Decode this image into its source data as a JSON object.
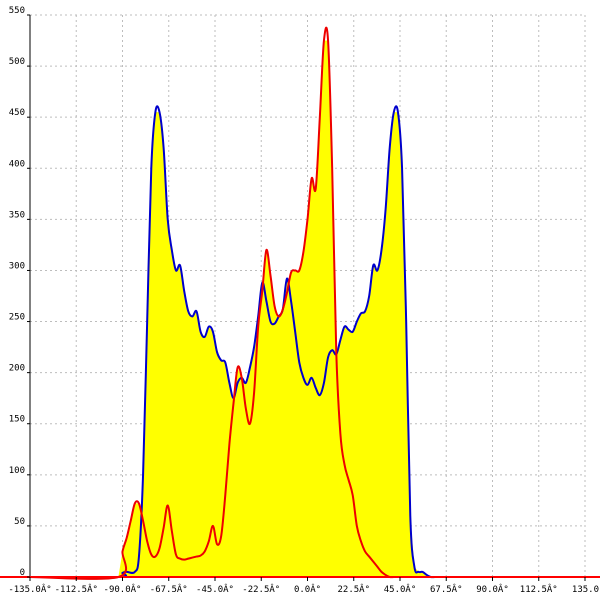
{
  "chart_data": {
    "type": "area",
    "title": "",
    "xlabel": "",
    "ylabel": "",
    "xlim": [
      -135,
      135
    ],
    "ylim": [
      0,
      550
    ],
    "grid": true,
    "x_tick_labels": [
      "-135.0Â°",
      "-112.5Â°",
      "-90.0Â°",
      "-67.5Â°",
      "-45.0Â°",
      "-22.5Â°",
      "0.0Â°",
      "22.5Â°",
      "45.0Â°",
      "67.5Â°",
      "90.0Â°",
      "112.5Â°",
      "135.0"
    ],
    "x_ticks": [
      -135,
      -112.5,
      -90,
      -67.5,
      -45,
      -22.5,
      0,
      22.5,
      45,
      67.5,
      90,
      112.5,
      135
    ],
    "y_tick_labels": [
      "0",
      "50",
      "100",
      "150",
      "200",
      "250",
      "300",
      "350",
      "400",
      "450",
      "500",
      "550"
    ],
    "y_ticks": [
      0,
      50,
      100,
      150,
      200,
      250,
      300,
      350,
      400,
      450,
      500,
      550
    ],
    "colors": {
      "fill": "#ffff00",
      "series_a": "#0000cc",
      "series_b": "#ee0000",
      "axis": "#000000",
      "grid": "#bdbdbd",
      "baseline": "#ff0000"
    },
    "series": [
      {
        "color": "#0000cc",
        "x": [
          -135,
          -92,
          -90,
          -88,
          -84,
          -82,
          -80,
          -78,
          -76,
          -74,
          -72,
          -70,
          -68,
          -66,
          -64,
          -62,
          -60,
          -58,
          -56,
          -54,
          -52,
          -50,
          -48,
          -46,
          -44,
          -42,
          -40,
          -38,
          -36,
          -34,
          -32,
          -30,
          -28,
          -26,
          -24,
          -22,
          -20,
          -18,
          -16,
          -14,
          -12,
          -10,
          -8,
          -6,
          -4,
          -2,
          0,
          2,
          4,
          6,
          8,
          10,
          12,
          14,
          16,
          18,
          20,
          22,
          24,
          26,
          28,
          30,
          32,
          34,
          36,
          38,
          40,
          42,
          44,
          46,
          48,
          50,
          52,
          54,
          56,
          58,
          60,
          62,
          64,
          66,
          68,
          70,
          72,
          74,
          76,
          78,
          80,
          82,
          84,
          86,
          88,
          90,
          92,
          135
        ],
        "y": [
          0,
          0,
          4,
          5,
          5,
          20,
          100,
          250,
          400,
          455,
          455,
          420,
          350,
          320,
          300,
          305,
          280,
          260,
          255,
          260,
          240,
          235,
          245,
          240,
          220,
          212,
          210,
          190,
          175,
          190,
          195,
          190,
          205,
          225,
          255,
          288,
          270,
          250,
          248,
          255,
          262,
          292,
          270,
          240,
          210,
          195,
          188,
          195,
          185,
          178,
          190,
          215,
          222,
          218,
          232,
          245,
          242,
          240,
          250,
          258,
          260,
          275,
          305,
          300,
          320,
          360,
          420,
          455,
          455,
          400,
          250,
          60,
          10,
          5,
          5,
          2,
          0,
          0,
          0,
          0,
          0,
          0,
          0,
          0,
          0,
          0,
          0,
          0,
          0,
          0,
          0,
          0,
          0,
          0
        ]
      },
      {
        "color": "#ee0000",
        "x": [
          -135,
          -92,
          -90,
          -88,
          -86,
          -84,
          -82,
          -80,
          -78,
          -76,
          -74,
          -72,
          -70,
          -68,
          -66,
          -64,
          -62,
          -60,
          -58,
          -56,
          -54,
          -52,
          -50,
          -48,
          -46,
          -44,
          -42,
          -40,
          -38,
          -36,
          -34,
          -32,
          -30,
          -28,
          -26,
          -24,
          -22,
          -20,
          -18,
          -16,
          -14,
          -12,
          -10,
          -8,
          -6,
          -4,
          -2,
          0,
          2,
          4,
          6,
          8,
          10,
          12,
          14,
          16,
          18,
          20,
          22,
          24,
          26,
          28,
          30,
          32,
          34,
          36,
          38,
          40,
          42,
          44,
          46,
          48,
          50,
          52,
          54,
          56,
          58,
          60,
          62,
          64,
          66,
          68,
          70,
          72,
          74,
          76,
          78,
          80,
          82,
          84,
          86,
          88,
          90,
          92,
          135
        ],
        "y": [
          0,
          0,
          25,
          38,
          55,
          72,
          72,
          55,
          35,
          22,
          20,
          28,
          48,
          70,
          45,
          22,
          18,
          17,
          18,
          19,
          20,
          21,
          25,
          35,
          50,
          32,
          40,
          80,
          130,
          170,
          205,
          195,
          165,
          150,
          180,
          245,
          280,
          320,
          295,
          265,
          255,
          262,
          278,
          298,
          300,
          300,
          318,
          350,
          390,
          380,
          450,
          525,
          525,
          400,
          220,
          140,
          110,
          95,
          80,
          50,
          35,
          25,
          20,
          15,
          10,
          5,
          2,
          0,
          0,
          0,
          0,
          0,
          0,
          0,
          0,
          0,
          0,
          0,
          0,
          0,
          0,
          0,
          0,
          0,
          0,
          0,
          0,
          0,
          0,
          0,
          0,
          0,
          0,
          0,
          0
        ]
      }
    ]
  }
}
